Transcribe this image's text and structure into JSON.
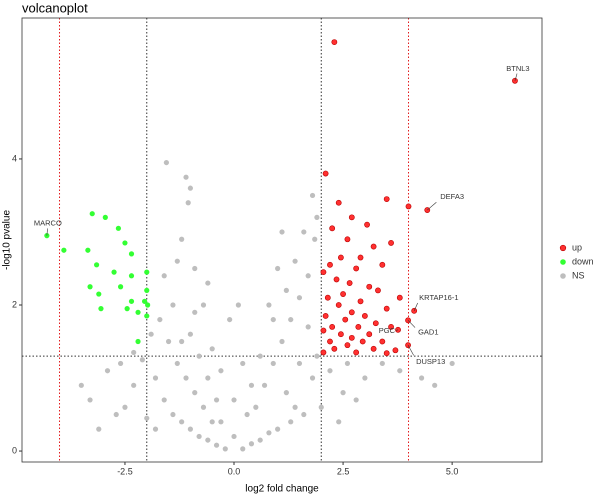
{
  "chart_data": {
    "type": "scatter",
    "title": "volcanoplot",
    "x_label": "log2 fold change",
    "y_label": "-log10 pvalue",
    "xlim": [
      -4.86,
      7.06
    ],
    "ylim": [
      -0.15,
      5.93
    ],
    "xticks": [
      -2.5,
      {
        "value": 0,
        "label": "0.0"
      },
      2.5,
      {
        "value": 5,
        "label": "5.0"
      }
    ],
    "yticks": [
      0,
      2,
      4
    ],
    "legend": "right",
    "reference_lines": [
      {
        "axis": "x",
        "value": -4,
        "color": "#e31a1c"
      },
      {
        "axis": "x",
        "value": -2,
        "color": "#333333"
      },
      {
        "axis": "x",
        "value": 2,
        "color": "#333333"
      },
      {
        "axis": "x",
        "value": 4,
        "color": "#e31a1c"
      },
      {
        "axis": "y",
        "value": 1.3,
        "color": "#333333"
      }
    ],
    "series": [
      {
        "name": "up",
        "color": "#ff3030",
        "x": [
          2.3,
          6.44,
          4.43,
          3.5,
          4.0,
          2.1,
          2.4,
          2.25,
          2.7,
          3.05,
          2.6,
          3.2,
          3.6,
          2.45,
          2.9,
          2.2,
          3.4,
          2.8,
          2.05,
          2.35,
          2.65,
          3.1,
          2.5,
          3.3,
          3.8,
          2.15,
          2.9,
          4.13,
          2.4,
          3.5,
          2.7,
          2.1,
          3.0,
          2.55,
          3.25,
          2.25,
          3.99,
          2.85,
          3.6,
          2.05,
          2.45,
          3.76,
          3.1,
          2.7,
          2.2,
          2.95,
          3.4,
          2.6,
          3.99,
          2.3,
          3.2,
          3.7,
          2.05,
          2.8,
          3.5
        ],
        "y": [
          5.6,
          5.07,
          3.3,
          3.45,
          3.35,
          3.8,
          3.4,
          3.05,
          3.2,
          3.1,
          2.9,
          2.8,
          2.85,
          2.65,
          2.65,
          2.55,
          2.55,
          2.5,
          2.45,
          2.35,
          2.3,
          2.25,
          2.15,
          2.2,
          2.1,
          2.1,
          2.05,
          1.92,
          2.0,
          1.95,
          1.9,
          1.85,
          1.85,
          1.8,
          1.75,
          1.7,
          1.79,
          1.7,
          1.7,
          1.65,
          1.6,
          1.66,
          1.6,
          1.55,
          1.5,
          1.5,
          1.5,
          1.45,
          1.45,
          1.4,
          1.4,
          1.38,
          1.35,
          1.35,
          1.34
        ]
      },
      {
        "name": "down",
        "color": "#33ff33",
        "x": [
          -4.29,
          -3.9,
          -3.25,
          -2.95,
          -2.65,
          -2.5,
          -2.35,
          -3.35,
          -3.15,
          -2.75,
          -2.35,
          -2.0,
          -3.3,
          -3.1,
          -2.6,
          -2.35,
          -2.0,
          -1.98,
          -2.45,
          -2.2,
          -3.05,
          -2.0,
          -2.05,
          -2.2
        ],
        "y": [
          2.95,
          2.75,
          3.25,
          3.2,
          3.05,
          2.85,
          2.7,
          2.75,
          2.55,
          2.45,
          2.4,
          2.45,
          2.25,
          2.15,
          2.25,
          2.05,
          2.2,
          2.0,
          1.95,
          1.9,
          1.95,
          1.85,
          2.05,
          1.5
        ]
      },
      {
        "name": "NS",
        "color": "#bebebe",
        "x": [
          -2.3,
          -2.5,
          -2.7,
          -3.1,
          -3.3,
          -2.9,
          -2.6,
          -2.1,
          -1.9,
          -1.7,
          -1.6,
          -1.55,
          -1.1,
          -1.0,
          -1.05,
          -1.2,
          -1.3,
          -0.9,
          -1.5,
          -1.8,
          -1.6,
          -1.4,
          -1.2,
          -1.0,
          -0.8,
          -0.6,
          -0.4,
          -0.2,
          -1.3,
          -1.1,
          -0.9,
          -0.7,
          -0.5,
          -1.4,
          -1.0,
          -0.8,
          -0.6,
          -0.4,
          -0.3,
          -2.3,
          -0.7,
          -1.2,
          -0.5,
          -3.5,
          -2.0,
          -1.8,
          -0.9,
          -0.6,
          -0.3,
          0.2,
          0.4,
          0.6,
          0.8,
          1.0,
          1.3,
          1.6,
          2.0,
          2.5,
          3.0,
          3.4,
          4.3,
          4.6,
          5.0,
          3.8,
          0.5,
          0.7,
          0.9,
          1.1,
          1.3,
          1.5,
          1.7,
          1.85,
          1.9,
          1.6,
          1.2,
          0.9,
          0.6,
          0.4,
          1.4,
          1.0,
          1.8,
          1.5,
          1.2,
          1.8,
          2.2,
          2.6,
          1.9,
          0.3,
          0.8,
          1.1,
          1.7,
          2.4,
          2.8,
          1.4,
          0.2,
          0.0,
          -0.1,
          0.1,
          0.0
        ],
        "y": [
          0.9,
          0.6,
          0.5,
          0.3,
          0.7,
          1.1,
          1.2,
          1.25,
          1.6,
          1.8,
          2.4,
          3.95,
          3.75,
          3.6,
          3.4,
          2.9,
          2.6,
          2.5,
          1.5,
          1.0,
          0.7,
          0.5,
          0.4,
          0.3,
          0.2,
          0.15,
          0.08,
          0.03,
          1.2,
          1.0,
          0.8,
          0.6,
          0.4,
          2.0,
          1.6,
          1.3,
          1.0,
          0.7,
          0.4,
          1.35,
          2.0,
          1.5,
          1.4,
          0.9,
          0.45,
          0.3,
          1.9,
          2.3,
          1.1,
          0.03,
          0.1,
          0.15,
          0.25,
          0.3,
          0.4,
          0.5,
          0.6,
          0.8,
          1.0,
          1.2,
          1.0,
          0.9,
          1.2,
          1.1,
          0.6,
          0.9,
          1.2,
          1.5,
          1.8,
          2.1,
          2.4,
          2.9,
          3.2,
          3.0,
          2.2,
          1.8,
          1.3,
          0.9,
          2.6,
          2.5,
          3.5,
          1.2,
          0.8,
          1.0,
          1.1,
          1.2,
          1.3,
          0.5,
          2.0,
          3.0,
          1.7,
          0.4,
          0.7,
          0.6,
          1.2,
          0.7,
          1.8,
          2.0,
          0.2
        ]
      }
    ],
    "point_labels": [
      {
        "text": "BTNL3",
        "x": 6.44,
        "y": 5.07
      },
      {
        "text": "DEFA3",
        "x": 4.43,
        "y": 3.3
      },
      {
        "text": "MARCO",
        "x": -4.29,
        "y": 2.95
      },
      {
        "text": "KRTAP16-1",
        "x": 4.13,
        "y": 1.92
      },
      {
        "text": "GAD1",
        "x": 3.99,
        "y": 1.79
      },
      {
        "text": "PGC",
        "x": 3.76,
        "y": 1.66
      },
      {
        "text": "DUSP13",
        "x": 3.99,
        "y": 1.45
      }
    ]
  }
}
